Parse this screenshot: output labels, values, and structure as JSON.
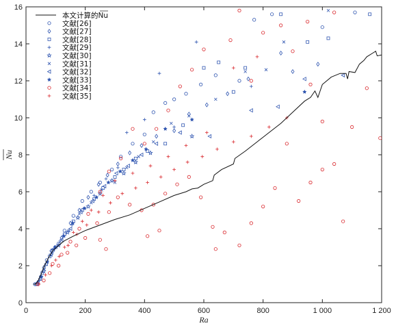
{
  "chart_data": {
    "type": "scatter",
    "title": "",
    "xlabel": "Ra",
    "ylabel": "Nu",
    "xlim": [
      0,
      1200
    ],
    "ylim": [
      0,
      16
    ],
    "x_ticks": [
      0,
      200,
      400,
      600,
      800,
      1000,
      1200
    ],
    "x_tick_labels": [
      "0",
      "200",
      "400",
      "600",
      "800",
      "1 000",
      "1 200"
    ],
    "y_ticks": [
      0,
      2,
      4,
      6,
      8,
      10,
      12,
      14,
      16
    ],
    "y_tick_labels": [
      "0",
      "2",
      "4",
      "6",
      "8",
      "10",
      "12",
      "14",
      "16"
    ],
    "grid": false,
    "legend_position": "top-left",
    "colors": {
      "blue": "#2f55b0",
      "red": "#d9262b",
      "line": "#111111"
    },
    "line": {
      "name": "本文计算的Nu",
      "points": [
        [
          25,
          1
        ],
        [
          32,
          1
        ],
        [
          40,
          1.15
        ],
        [
          50,
          1.5
        ],
        [
          62,
          2.0
        ],
        [
          75,
          2.4
        ],
        [
          90,
          2.8
        ],
        [
          110,
          3.1
        ],
        [
          130,
          3.35
        ],
        [
          160,
          3.6
        ],
        [
          200,
          3.9
        ],
        [
          250,
          4.2
        ],
        [
          300,
          4.5
        ],
        [
          350,
          4.75
        ],
        [
          400,
          5.1
        ],
        [
          450,
          5.45
        ],
        [
          500,
          5.8
        ],
        [
          540,
          6.0
        ],
        [
          560,
          6.15
        ],
        [
          580,
          6.2
        ],
        [
          600,
          6.4
        ],
        [
          630,
          6.6
        ],
        [
          635,
          6.9
        ],
        [
          660,
          7.2
        ],
        [
          700,
          7.5
        ],
        [
          705,
          7.8
        ],
        [
          740,
          8.2
        ],
        [
          780,
          8.7
        ],
        [
          820,
          9.2
        ],
        [
          860,
          9.7
        ],
        [
          900,
          10.3
        ],
        [
          940,
          10.9
        ],
        [
          960,
          11.1
        ],
        [
          975,
          11.45
        ],
        [
          985,
          11.1
        ],
        [
          1000,
          11.8
        ],
        [
          1030,
          12.2
        ],
        [
          1060,
          12.4
        ],
        [
          1080,
          12.4
        ],
        [
          1085,
          12.1
        ],
        [
          1090,
          12.5
        ],
        [
          1110,
          12.45
        ],
        [
          1125,
          12.9
        ],
        [
          1140,
          13.1
        ],
        [
          1150,
          13.3
        ],
        [
          1170,
          13.5
        ],
        [
          1180,
          13.6
        ],
        [
          1185,
          13.35
        ],
        [
          1200,
          13.4
        ]
      ]
    },
    "series": [
      {
        "name": "文献[26]",
        "marker": "circle-open",
        "color": "blue",
        "points": [
          [
            30,
            1.0
          ],
          [
            50,
            1.4
          ],
          [
            70,
            2.3
          ],
          [
            90,
            2.8
          ],
          [
            110,
            3.2
          ],
          [
            130,
            3.9
          ],
          [
            160,
            4.7
          ],
          [
            190,
            5.5
          ],
          [
            220,
            6.0
          ],
          [
            250,
            6.5
          ],
          [
            290,
            7.2
          ],
          [
            320,
            7.9
          ],
          [
            360,
            8.6
          ],
          [
            400,
            9.1
          ],
          [
            430,
            10.3
          ],
          [
            470,
            10.8
          ],
          [
            500,
            11.0
          ],
          [
            540,
            11.3
          ],
          [
            590,
            11.8
          ],
          [
            640,
            12.3
          ],
          [
            720,
            12.0
          ],
          [
            770,
            15.3
          ],
          [
            830,
            15.6
          ],
          [
            1000,
            14.9
          ],
          [
            1110,
            15.7
          ]
        ]
      },
      {
        "name": "文献[27]",
        "marker": "diamond-open",
        "color": "blue",
        "points": [
          [
            40,
            1.1
          ],
          [
            60,
            1.9
          ],
          [
            85,
            2.8
          ],
          [
            120,
            3.5
          ],
          [
            150,
            4.3
          ],
          [
            180,
            5.0
          ],
          [
            210,
            5.7
          ],
          [
            245,
            6.4
          ],
          [
            275,
            6.9
          ],
          [
            310,
            7.5
          ],
          [
            350,
            8.1
          ],
          [
            390,
            8.5
          ],
          [
            440,
            9.0
          ],
          [
            500,
            9.3
          ],
          [
            550,
            10.2
          ],
          [
            610,
            10.7
          ],
          [
            680,
            11.3
          ],
          [
            750,
            12.1
          ],
          [
            860,
            13.5
          ],
          [
            900,
            12.5
          ],
          [
            985,
            12.9
          ]
        ]
      },
      {
        "name": "文献[28]",
        "marker": "square-open",
        "color": "blue",
        "points": [
          [
            35,
            1.0
          ],
          [
            55,
            1.6
          ],
          [
            80,
            2.5
          ],
          [
            100,
            3.0
          ],
          [
            130,
            3.7
          ],
          [
            160,
            4.4
          ],
          [
            190,
            5.0
          ],
          [
            230,
            5.6
          ],
          [
            260,
            6.2
          ],
          [
            300,
            6.8
          ],
          [
            330,
            7.2
          ],
          [
            370,
            7.8
          ],
          [
            410,
            8.2
          ],
          [
            470,
            8.6
          ],
          [
            530,
            9.6
          ],
          [
            600,
            12.7
          ],
          [
            650,
            13.0
          ],
          [
            700,
            11.4
          ],
          [
            740,
            12.7
          ],
          [
            860,
            15.6
          ],
          [
            950,
            14.1
          ],
          [
            1020,
            14.3
          ],
          [
            1160,
            15.6
          ]
        ]
      },
      {
        "name": "文献[29]",
        "marker": "plus",
        "color": "blue",
        "points": [
          [
            45,
            1.2
          ],
          [
            65,
            2.0
          ],
          [
            95,
            2.9
          ],
          [
            125,
            3.6
          ],
          [
            155,
            4.2
          ],
          [
            195,
            5.1
          ],
          [
            230,
            5.8
          ],
          [
            270,
            6.7
          ],
          [
            310,
            7.3
          ],
          [
            340,
            9.2
          ],
          [
            400,
            9.9
          ],
          [
            450,
            12.4
          ],
          [
            500,
            9.5
          ],
          [
            575,
            14.1
          ],
          [
            760,
            11.7
          ]
        ]
      },
      {
        "name": "文献[30]",
        "marker": "star",
        "color": "blue",
        "points": [
          [
            38,
            1.0
          ],
          [
            60,
            1.7
          ],
          [
            85,
            2.6
          ],
          [
            110,
            3.1
          ],
          [
            140,
            3.8
          ],
          [
            175,
            4.6
          ],
          [
            210,
            5.2
          ],
          [
            250,
            5.9
          ],
          [
            290,
            6.6
          ],
          [
            330,
            7.0
          ],
          [
            370,
            7.6
          ],
          [
            420,
            8.1
          ],
          [
            560,
            9.0
          ]
        ]
      },
      {
        "name": "文献[31]",
        "marker": "x",
        "color": "blue",
        "points": [
          [
            42,
            1.1
          ],
          [
            62,
            1.8
          ],
          [
            88,
            2.7
          ],
          [
            115,
            3.3
          ],
          [
            145,
            3.9
          ],
          [
            180,
            4.8
          ],
          [
            220,
            5.4
          ],
          [
            255,
            6.1
          ],
          [
            300,
            6.5
          ],
          [
            340,
            7.3
          ],
          [
            380,
            7.9
          ],
          [
            430,
            8.7
          ],
          [
            490,
            9.7
          ],
          [
            550,
            10.1
          ],
          [
            640,
            11.0
          ],
          [
            740,
            12.5
          ],
          [
            810,
            12.6
          ],
          [
            870,
            14.1
          ],
          [
            1020,
            15.8
          ]
        ]
      },
      {
        "name": "文献[32]",
        "marker": "triangle-left-open",
        "color": "blue",
        "points": [
          [
            48,
            1.3
          ],
          [
            68,
            2.1
          ],
          [
            92,
            2.9
          ],
          [
            120,
            3.4
          ],
          [
            150,
            4.0
          ],
          [
            185,
            4.9
          ],
          [
            225,
            5.5
          ],
          [
            265,
            6.3
          ],
          [
            305,
            7.0
          ],
          [
            345,
            7.4
          ],
          [
            390,
            8.0
          ],
          [
            440,
            8.6
          ],
          [
            520,
            9.2
          ],
          [
            620,
            9.0
          ],
          [
            760,
            10.4
          ],
          [
            850,
            10.6
          ],
          [
            940,
            12.1
          ],
          [
            1070,
            12.3
          ]
        ]
      },
      {
        "name": "文献[33]",
        "marker": "star-filled",
        "color": "blue",
        "points": [
          [
            52,
            1.4
          ],
          [
            72,
            2.2
          ],
          [
            98,
            3.0
          ],
          [
            128,
            3.6
          ],
          [
            158,
            4.3
          ],
          [
            198,
            5.1
          ],
          [
            238,
            5.7
          ],
          [
            278,
            6.5
          ],
          [
            318,
            7.1
          ],
          [
            360,
            7.7
          ],
          [
            405,
            8.3
          ],
          [
            470,
            9.4
          ],
          [
            560,
            9.9
          ],
          [
            940,
            11.4
          ]
        ]
      },
      {
        "name": "文献[34]",
        "marker": "circle-open",
        "color": "red",
        "points": [
          [
            40,
            1.0
          ],
          [
            60,
            1.2
          ],
          [
            80,
            1.6
          ],
          [
            110,
            2.0
          ],
          [
            140,
            2.7
          ],
          [
            170,
            3.1
          ],
          [
            200,
            3.5
          ],
          [
            240,
            4.3
          ],
          [
            280,
            4.9
          ],
          [
            310,
            5.7
          ],
          [
            350,
            5.3
          ],
          [
            390,
            5.0
          ],
          [
            430,
            5.3
          ],
          [
            470,
            5.9
          ],
          [
            510,
            6.4
          ],
          [
            550,
            6.8
          ],
          [
            590,
            5.7
          ],
          [
            630,
            4.1
          ],
          [
            670,
            3.8
          ],
          [
            720,
            3.1
          ],
          [
            760,
            4.3
          ],
          [
            800,
            5.2
          ],
          [
            840,
            6.2
          ],
          [
            880,
            8.6
          ],
          [
            920,
            5.5
          ],
          [
            960,
            6.5
          ],
          [
            1000,
            7.2
          ],
          [
            1040,
            7.5
          ],
          [
            1070,
            4.4
          ],
          [
            1100,
            9.5
          ],
          [
            1150,
            11.6
          ],
          [
            1195,
            8.9
          ],
          [
            1000,
            9.8
          ],
          [
            960,
            11.8
          ],
          [
            900,
            13.6
          ],
          [
            860,
            15.0
          ],
          [
            800,
            14.6
          ],
          [
            720,
            15.8
          ],
          [
            600,
            13.7
          ],
          [
            560,
            12.6
          ],
          [
            520,
            11.7
          ],
          [
            480,
            10.4
          ],
          [
            440,
            9.4
          ],
          [
            400,
            8.6
          ],
          [
            360,
            9.4
          ],
          [
            320,
            7.8
          ],
          [
            280,
            7.1
          ],
          [
            250,
            6.0
          ],
          [
            210,
            4.8
          ],
          [
            180,
            4.0
          ],
          [
            150,
            3.3
          ],
          [
            120,
            2.6
          ],
          [
            90,
            2.1
          ],
          [
            270,
            2.9
          ],
          [
            410,
            3.6
          ],
          [
            450,
            3.9
          ],
          [
            250,
            3.4
          ],
          [
            640,
            2.9
          ],
          [
            760,
            12.0
          ],
          [
            690,
            14.2
          ],
          [
            950,
            15.2
          ],
          [
            1040,
            15.7
          ]
        ]
      },
      {
        "name": "文献[35]",
        "marker": "plus",
        "color": "red",
        "points": [
          [
            44,
            1.0
          ],
          [
            66,
            1.5
          ],
          [
            86,
            2.0
          ],
          [
            112,
            2.5
          ],
          [
            142,
            3.1
          ],
          [
            172,
            3.7
          ],
          [
            205,
            4.2
          ],
          [
            245,
            4.9
          ],
          [
            285,
            5.4
          ],
          [
            325,
            5.9
          ],
          [
            370,
            6.2
          ],
          [
            410,
            6.5
          ],
          [
            455,
            6.8
          ],
          [
            500,
            7.2
          ],
          [
            545,
            7.6
          ],
          [
            595,
            7.9
          ],
          [
            645,
            8.3
          ],
          [
            700,
            8.7
          ],
          [
            760,
            9.0
          ],
          [
            820,
            9.5
          ],
          [
            880,
            10.0
          ],
          [
            700,
            12.7
          ],
          [
            780,
            13.3
          ],
          [
            610,
            9.2
          ],
          [
            540,
            8.5
          ],
          [
            480,
            7.9
          ],
          [
            420,
            7.4
          ],
          [
            360,
            7.0
          ],
          [
            300,
            6.6
          ],
          [
            260,
            5.8
          ],
          [
            220,
            5.0
          ],
          [
            190,
            4.4
          ],
          [
            160,
            3.8
          ],
          [
            130,
            3.0
          ],
          [
            100,
            2.3
          ]
        ]
      }
    ]
  }
}
